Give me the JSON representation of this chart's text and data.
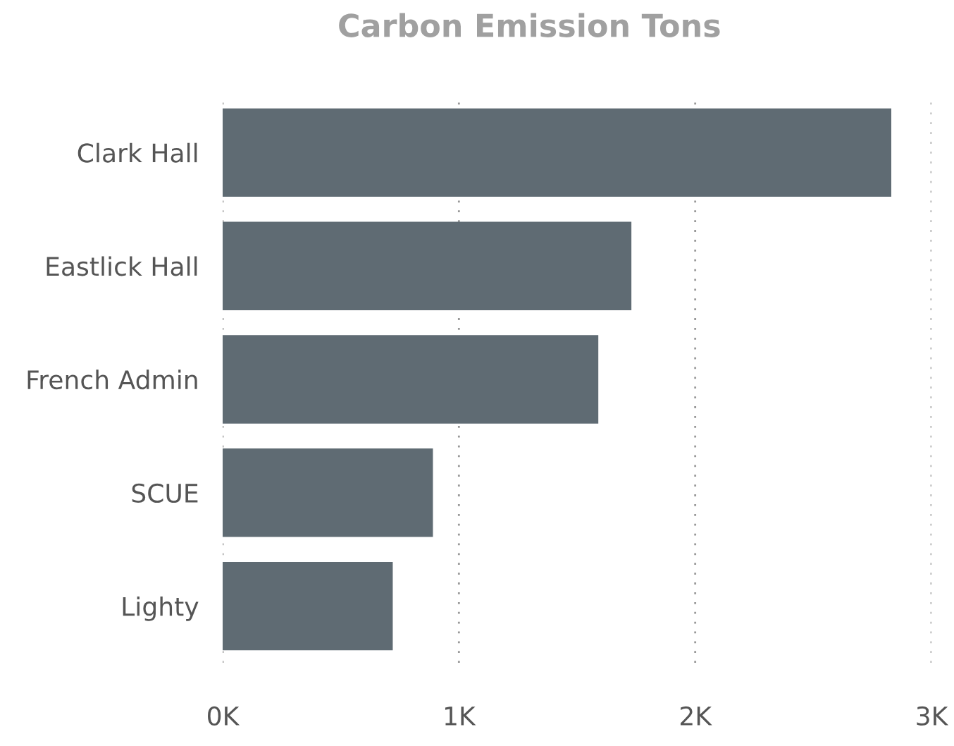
{
  "chart_data": {
    "type": "bar",
    "orientation": "horizontal",
    "title": "Carbon Emission Tons",
    "categories": [
      "Clark Hall",
      "Eastlick Hall",
      "French Admin",
      "SCUE",
      "Lighty"
    ],
    "values": [
      2830,
      1730,
      1590,
      890,
      720
    ],
    "color": "#5f6b73",
    "xlim": [
      0,
      3000
    ],
    "xticks": [
      {
        "value": 0,
        "label": "0K"
      },
      {
        "value": 1000,
        "label": "1K"
      },
      {
        "value": 2000,
        "label": "2K"
      },
      {
        "value": 3000,
        "label": "3K"
      }
    ],
    "grid": "x"
  }
}
